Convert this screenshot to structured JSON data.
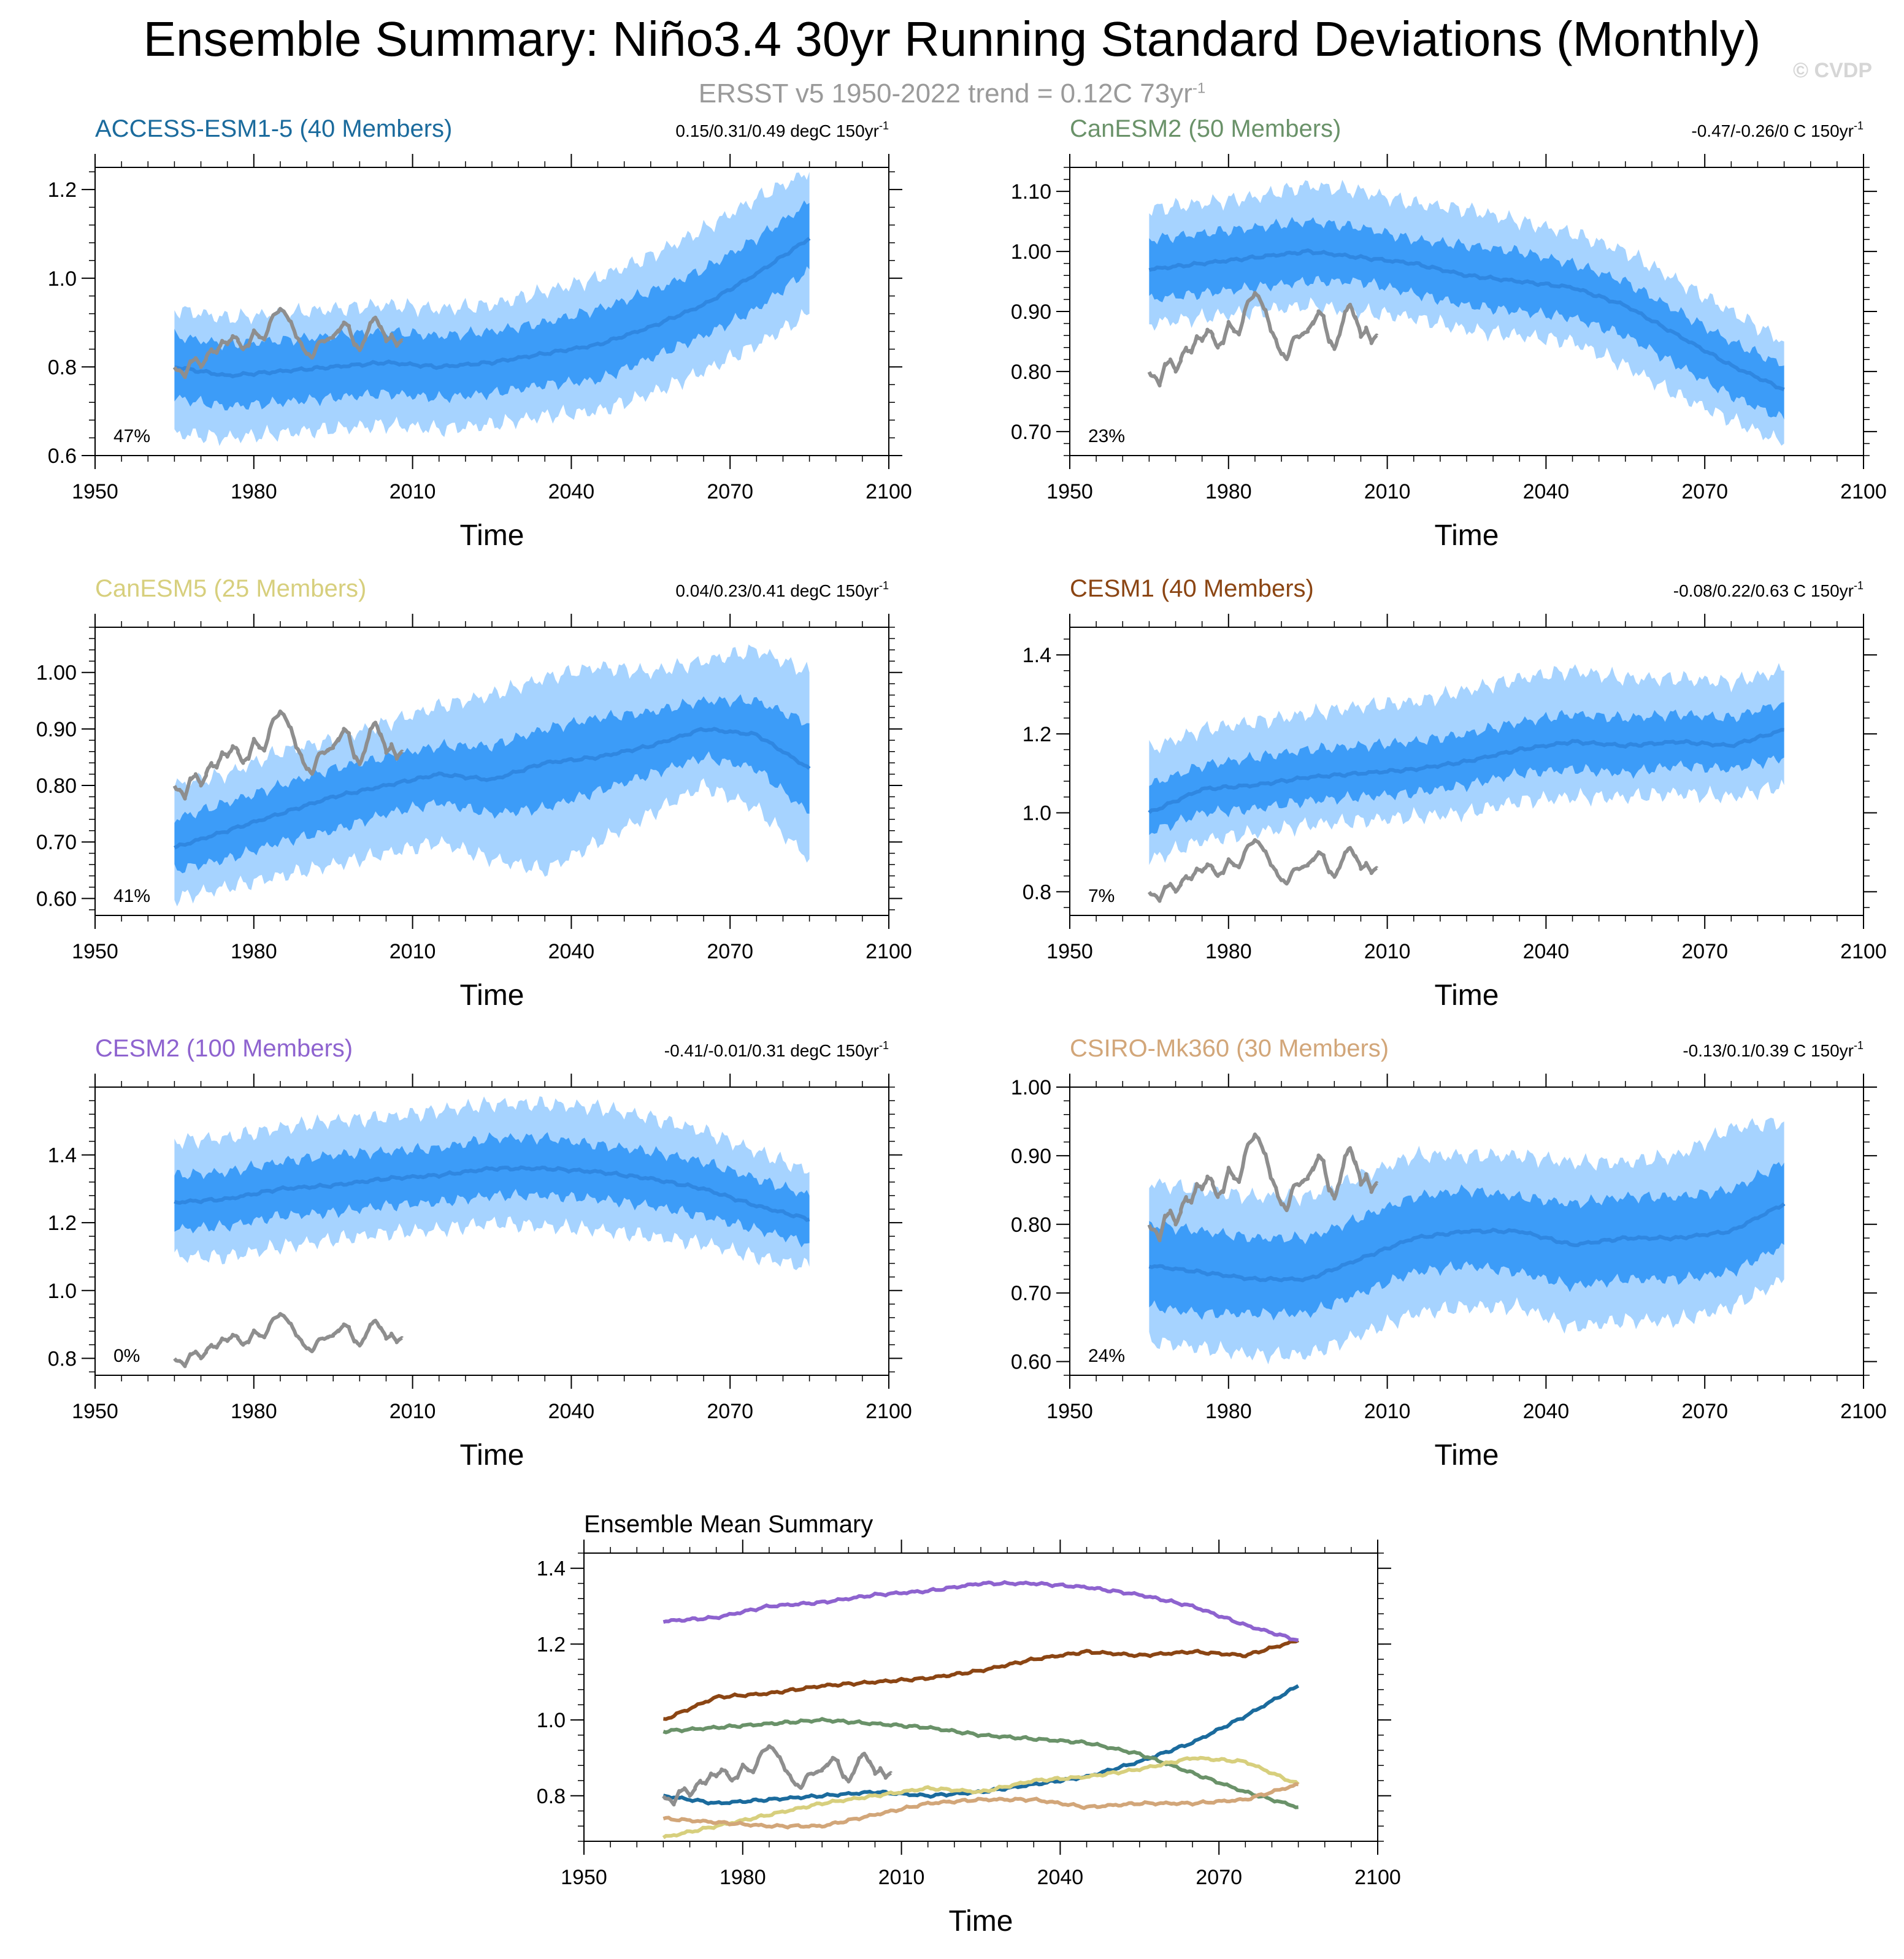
{
  "page": {
    "title": "Ensemble Summary: Niño3.4 30yr Running Standard Deviations (Monthly)",
    "subtitle_prefix": "ERSST v5 1950-2022 trend = 0.12C 73yr",
    "subtitle_sup": "-1",
    "copyright": "© CVDP"
  },
  "colors": {
    "band_outer": "#a6d3ff",
    "band_inner": "#3c9cf8",
    "ens_mean": "#2f87e1",
    "obs": "#8e8e8e",
    "axis": "#000000"
  },
  "obs_series": {
    "name": "ERSST v5",
    "x": [
      1965,
      1966,
      1967,
      1968,
      1969,
      1970,
      1971,
      1972,
      1973,
      1974,
      1975,
      1976,
      1977,
      1978,
      1979,
      1980,
      1981,
      1982,
      1983,
      1984,
      1985,
      1986,
      1987,
      1988,
      1989,
      1990,
      1991,
      1992,
      1993,
      1994,
      1995,
      1996,
      1997,
      1998,
      1999,
      2000,
      2001,
      2002,
      2003,
      2004,
      2005,
      2006,
      2007,
      2008
    ],
    "y": [
      0.8,
      0.79,
      0.78,
      0.81,
      0.82,
      0.8,
      0.82,
      0.84,
      0.83,
      0.86,
      0.85,
      0.87,
      0.86,
      0.84,
      0.85,
      0.88,
      0.87,
      0.86,
      0.9,
      0.92,
      0.93,
      0.92,
      0.9,
      0.87,
      0.85,
      0.83,
      0.82,
      0.85,
      0.86,
      0.86,
      0.87,
      0.88,
      0.9,
      0.89,
      0.85,
      0.84,
      0.86,
      0.9,
      0.91,
      0.89,
      0.86,
      0.87,
      0.85,
      0.86
    ]
  },
  "chart_data": [
    {
      "type": "area",
      "title": "ACCESS-ESM1-5 (40 Members)",
      "title_color": "#1b6b9d",
      "stats": "0.15/0.31/0.49 degC 150yr",
      "stats_sup": "-1",
      "percent": "47%",
      "xlabel": "Time",
      "xlim": [
        1950,
        2100
      ],
      "xticks": [
        "1950",
        "1980",
        "2010",
        "2040",
        "2070",
        "2100"
      ],
      "ylim": [
        0.6,
        1.25
      ],
      "yticks": [
        "0.6",
        "0.8",
        "1.0",
        "1.2"
      ],
      "x": [
        1965,
        1975,
        1985,
        1995,
        2005,
        2015,
        2025,
        2035,
        2045,
        2055,
        2065,
        2075,
        2085
      ],
      "mean": [
        0.8,
        0.78,
        0.79,
        0.8,
        0.81,
        0.8,
        0.81,
        0.83,
        0.85,
        0.89,
        0.94,
        1.01,
        1.09
      ],
      "p10": [
        0.65,
        0.64,
        0.65,
        0.66,
        0.67,
        0.66,
        0.67,
        0.69,
        0.7,
        0.74,
        0.79,
        0.85,
        0.92
      ],
      "p25": [
        0.73,
        0.71,
        0.72,
        0.73,
        0.74,
        0.73,
        0.74,
        0.76,
        0.77,
        0.82,
        0.87,
        0.93,
        1.02
      ],
      "p75": [
        0.87,
        0.85,
        0.86,
        0.87,
        0.88,
        0.87,
        0.88,
        0.9,
        0.93,
        0.97,
        1.02,
        1.09,
        1.17
      ],
      "p90": [
        0.93,
        0.91,
        0.92,
        0.93,
        0.94,
        0.93,
        0.94,
        0.97,
        1.0,
        1.05,
        1.11,
        1.18,
        1.24
      ]
    },
    {
      "type": "area",
      "title": "CanESM2 (50 Members)",
      "title_color": "#6a9269",
      "stats": "-0.47/-0.26/0 C 150yr",
      "stats_sup": "-1",
      "percent": "23%",
      "xlabel": "Time",
      "xlim": [
        1950,
        2100
      ],
      "xticks": [
        "1950",
        "1980",
        "2010",
        "2040",
        "2070",
        "2100"
      ],
      "ylim": [
        0.66,
        1.14
      ],
      "yticks": [
        "0.70",
        "0.80",
        "0.90",
        "1.00",
        "1.10"
      ],
      "x": [
        1965,
        1975,
        1985,
        1995,
        2005,
        2015,
        2025,
        2035,
        2045,
        2055,
        2065,
        2075,
        2085
      ],
      "mean": [
        0.97,
        0.98,
        0.99,
        1.0,
        0.99,
        0.98,
        0.96,
        0.95,
        0.94,
        0.91,
        0.86,
        0.81,
        0.77
      ],
      "p10": [
        0.88,
        0.89,
        0.9,
        0.91,
        0.9,
        0.89,
        0.87,
        0.86,
        0.85,
        0.81,
        0.76,
        0.72,
        0.68
      ],
      "p25": [
        0.92,
        0.93,
        0.94,
        0.95,
        0.95,
        0.93,
        0.91,
        0.9,
        0.89,
        0.86,
        0.81,
        0.76,
        0.72
      ],
      "p75": [
        1.02,
        1.03,
        1.04,
        1.05,
        1.04,
        1.02,
        1.01,
        1.0,
        0.98,
        0.95,
        0.9,
        0.85,
        0.81
      ],
      "p90": [
        1.07,
        1.08,
        1.09,
        1.11,
        1.1,
        1.08,
        1.07,
        1.05,
        1.03,
        1.0,
        0.95,
        0.9,
        0.85
      ]
    },
    {
      "type": "area",
      "title": "CanESM5 (25 Members)",
      "title_color": "#d7cf7d",
      "stats": "0.04/0.23/0.41 degC 150yr",
      "stats_sup": "-1",
      "percent": "41%",
      "xlabel": "Time",
      "xlim": [
        1950,
        2100
      ],
      "xticks": [
        "1950",
        "1980",
        "2010",
        "2040",
        "2070",
        "2100"
      ],
      "ylim": [
        0.57,
        1.08
      ],
      "yticks": [
        "0.60",
        "0.70",
        "0.80",
        "0.90",
        "1.00"
      ],
      "x": [
        1965,
        1975,
        1985,
        1995,
        2005,
        2015,
        2025,
        2035,
        2045,
        2055,
        2065,
        2075,
        2085
      ],
      "mean": [
        0.69,
        0.72,
        0.75,
        0.78,
        0.8,
        0.82,
        0.81,
        0.84,
        0.85,
        0.87,
        0.9,
        0.89,
        0.83
      ],
      "p10": [
        0.6,
        0.62,
        0.64,
        0.66,
        0.68,
        0.7,
        0.67,
        0.65,
        0.7,
        0.75,
        0.8,
        0.76,
        0.67
      ],
      "p25": [
        0.65,
        0.67,
        0.7,
        0.72,
        0.75,
        0.77,
        0.75,
        0.76,
        0.79,
        0.82,
        0.85,
        0.83,
        0.75
      ],
      "p75": [
        0.74,
        0.77,
        0.8,
        0.83,
        0.85,
        0.87,
        0.87,
        0.9,
        0.92,
        0.93,
        0.95,
        0.95,
        0.91
      ],
      "p90": [
        0.8,
        0.82,
        0.86,
        0.88,
        0.91,
        0.94,
        0.96,
        0.99,
        1.01,
        1.0,
        1.02,
        1.04,
        1.0
      ]
    },
    {
      "type": "area",
      "title": "CESM1 (40 Members)",
      "title_color": "#8b4513",
      "stats": "-0.08/0.22/0.63 C 150yr",
      "stats_sup": "-1",
      "percent": "7%",
      "xlabel": "Time",
      "xlim": [
        1950,
        2100
      ],
      "xticks": [
        "1950",
        "1980",
        "2010",
        "2040",
        "2070",
        "2100"
      ],
      "ylim": [
        0.74,
        1.47
      ],
      "yticks": [
        "0.8",
        "1.0",
        "1.2",
        "1.4"
      ],
      "x": [
        1965,
        1975,
        1985,
        1995,
        2005,
        2015,
        2025,
        2035,
        2045,
        2055,
        2065,
        2075,
        2085
      ],
      "mean": [
        1.0,
        1.06,
        1.07,
        1.09,
        1.1,
        1.11,
        1.13,
        1.16,
        1.18,
        1.17,
        1.18,
        1.17,
        1.21
      ],
      "p10": [
        0.88,
        0.93,
        0.95,
        0.97,
        0.98,
        0.99,
        1.0,
        1.03,
        1.04,
        1.04,
        1.05,
        1.04,
        1.07
      ],
      "p25": [
        0.95,
        1.0,
        1.01,
        1.03,
        1.04,
        1.05,
        1.07,
        1.1,
        1.11,
        1.1,
        1.12,
        1.11,
        1.14
      ],
      "p75": [
        1.07,
        1.12,
        1.14,
        1.16,
        1.17,
        1.18,
        1.2,
        1.23,
        1.25,
        1.24,
        1.25,
        1.24,
        1.28
      ],
      "p90": [
        1.16,
        1.21,
        1.23,
        1.25,
        1.27,
        1.28,
        1.31,
        1.34,
        1.36,
        1.34,
        1.34,
        1.33,
        1.36
      ]
    },
    {
      "type": "area",
      "title": "CESM2 (100 Members)",
      "title_color": "#8e63cf",
      "stats": "-0.41/-0.01/0.31 degC 150yr",
      "stats_sup": "-1",
      "percent": "0%",
      "xlabel": "Time",
      "xlim": [
        1950,
        2100
      ],
      "xticks": [
        "1950",
        "1980",
        "2010",
        "2040",
        "2070",
        "2100"
      ],
      "ylim": [
        0.75,
        1.6
      ],
      "yticks": [
        "0.8",
        "1.0",
        "1.2",
        "1.4"
      ],
      "x": [
        1965,
        1975,
        1985,
        1995,
        2005,
        2015,
        2025,
        2035,
        2045,
        2055,
        2065,
        2075,
        2085
      ],
      "mean": [
        1.26,
        1.27,
        1.3,
        1.31,
        1.33,
        1.34,
        1.36,
        1.36,
        1.35,
        1.33,
        1.3,
        1.25,
        1.21
      ],
      "p10": [
        1.1,
        1.1,
        1.13,
        1.15,
        1.17,
        1.18,
        1.2,
        1.19,
        1.18,
        1.16,
        1.14,
        1.1,
        1.07
      ],
      "p25": [
        1.18,
        1.19,
        1.22,
        1.23,
        1.25,
        1.26,
        1.28,
        1.28,
        1.27,
        1.25,
        1.22,
        1.18,
        1.14
      ],
      "p75": [
        1.34,
        1.35,
        1.38,
        1.4,
        1.41,
        1.42,
        1.45,
        1.45,
        1.43,
        1.41,
        1.38,
        1.33,
        1.28
      ],
      "p90": [
        1.44,
        1.45,
        1.48,
        1.5,
        1.51,
        1.53,
        1.55,
        1.55,
        1.54,
        1.51,
        1.47,
        1.41,
        1.35
      ]
    },
    {
      "type": "area",
      "title": "CSIRO-Mk360 (30 Members)",
      "title_color": "#d2a679",
      "stats": "-0.13/0.1/0.39 C 150yr",
      "stats_sup": "-1",
      "percent": "24%",
      "xlabel": "Time",
      "xlim": [
        1950,
        2100
      ],
      "xticks": [
        "1950",
        "1980",
        "2010",
        "2040",
        "2070",
        "2100"
      ],
      "ylim": [
        0.58,
        1.0
      ],
      "yticks": [
        "0.60",
        "0.70",
        "0.80",
        "0.90",
        "1.00"
      ],
      "x": [
        1965,
        1975,
        1985,
        1995,
        2005,
        2015,
        2025,
        2035,
        2045,
        2055,
        2065,
        2075,
        2085
      ],
      "mean": [
        0.74,
        0.73,
        0.72,
        0.72,
        0.75,
        0.78,
        0.79,
        0.79,
        0.77,
        0.78,
        0.78,
        0.79,
        0.83
      ],
      "p10": [
        0.63,
        0.62,
        0.61,
        0.61,
        0.64,
        0.67,
        0.68,
        0.68,
        0.65,
        0.66,
        0.66,
        0.68,
        0.72
      ],
      "p25": [
        0.68,
        0.67,
        0.67,
        0.67,
        0.7,
        0.73,
        0.74,
        0.73,
        0.71,
        0.72,
        0.72,
        0.73,
        0.77
      ],
      "p75": [
        0.8,
        0.79,
        0.78,
        0.78,
        0.81,
        0.84,
        0.85,
        0.84,
        0.83,
        0.84,
        0.84,
        0.85,
        0.89
      ],
      "p90": [
        0.86,
        0.85,
        0.84,
        0.84,
        0.87,
        0.9,
        0.9,
        0.9,
        0.89,
        0.89,
        0.9,
        0.94,
        0.95
      ]
    },
    {
      "type": "line",
      "title": "Ensemble Mean Summary",
      "xlabel": "Time",
      "xlim": [
        1950,
        2100
      ],
      "xticks": [
        "1950",
        "1980",
        "2010",
        "2040",
        "2070",
        "2100"
      ],
      "ylim": [
        0.68,
        1.44
      ],
      "yticks": [
        "0.8",
        "1.0",
        "1.2",
        "1.4"
      ],
      "x": [
        1965,
        1975,
        1985,
        1995,
        2005,
        2015,
        2025,
        2035,
        2045,
        2055,
        2065,
        2075,
        2085
      ],
      "series": [
        {
          "name": "ACCESS-ESM1-5",
          "color": "#1b6b9d",
          "values": [
            0.8,
            0.78,
            0.79,
            0.8,
            0.81,
            0.8,
            0.81,
            0.83,
            0.85,
            0.89,
            0.94,
            1.01,
            1.09
          ]
        },
        {
          "name": "CanESM2",
          "color": "#6a9269",
          "values": [
            0.97,
            0.98,
            0.99,
            1.0,
            0.99,
            0.98,
            0.96,
            0.95,
            0.94,
            0.91,
            0.86,
            0.81,
            0.77
          ]
        },
        {
          "name": "CanESM5",
          "color": "#d7cf7d",
          "values": [
            0.69,
            0.72,
            0.75,
            0.78,
            0.8,
            0.82,
            0.81,
            0.84,
            0.85,
            0.87,
            0.9,
            0.89,
            0.83
          ]
        },
        {
          "name": "CESM1",
          "color": "#8b4513",
          "values": [
            1.0,
            1.06,
            1.07,
            1.09,
            1.1,
            1.11,
            1.13,
            1.16,
            1.18,
            1.17,
            1.18,
            1.17,
            1.21
          ]
        },
        {
          "name": "CESM2",
          "color": "#8e63cf",
          "values": [
            1.26,
            1.27,
            1.3,
            1.31,
            1.33,
            1.34,
            1.36,
            1.36,
            1.35,
            1.33,
            1.3,
            1.25,
            1.21
          ]
        },
        {
          "name": "CSIRO-Mk360",
          "color": "#d2a679",
          "values": [
            0.74,
            0.73,
            0.72,
            0.72,
            0.75,
            0.78,
            0.79,
            0.79,
            0.77,
            0.78,
            0.78,
            0.79,
            0.83
          ]
        }
      ]
    }
  ]
}
